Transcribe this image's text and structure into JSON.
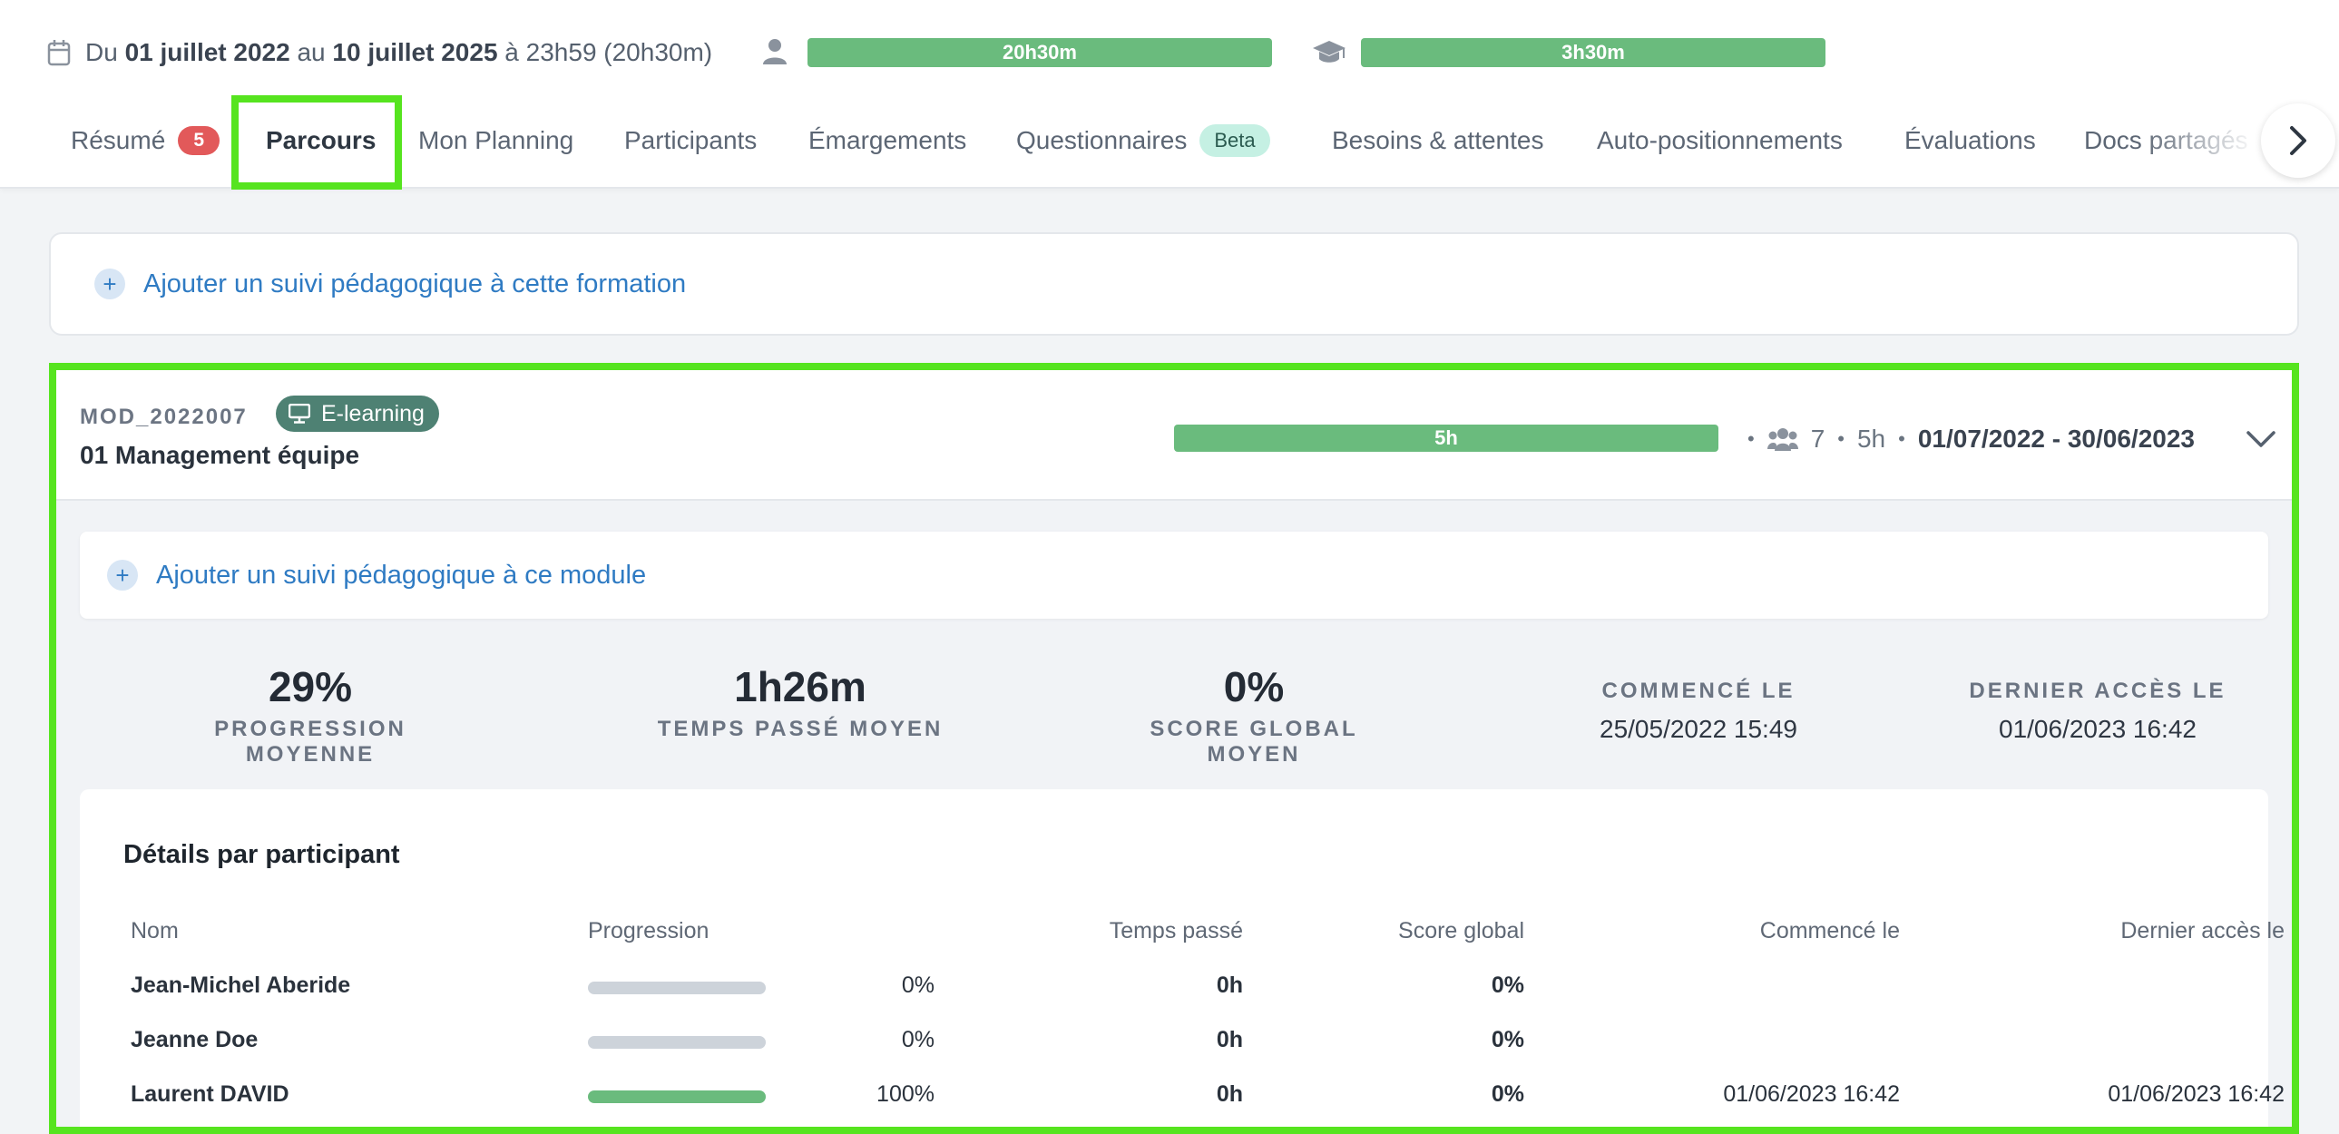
{
  "header": {
    "date_prefix": "Du",
    "date_start": "01 juillet 2022",
    "date_mid": "au",
    "date_end": "10 juillet 2025",
    "date_suffix": "à 23h59 (20h30m)",
    "bar1_label": "20h30m",
    "bar2_label": "3h30m"
  },
  "tabs": [
    {
      "label": "Résumé",
      "count": "5"
    },
    {
      "label": "Parcours",
      "active": true
    },
    {
      "label": "Mon Planning"
    },
    {
      "label": "Participants"
    },
    {
      "label": "Émargements"
    },
    {
      "label": "Questionnaires",
      "badge": "Beta"
    },
    {
      "label": "Besoins & attentes"
    },
    {
      "label": "Auto-positionnements"
    },
    {
      "label": "Évaluations"
    },
    {
      "label": "Docs partagés"
    }
  ],
  "add_formation_label": "Ajouter un suivi pédagogique à cette formation",
  "module": {
    "code": "MOD_2022007",
    "type_badge": "E-learning",
    "title": "01 Management équipe",
    "bar_label": "5h",
    "participants": "7",
    "duration": "5h",
    "dates": "01/07/2022 - 30/06/2023",
    "add_label": "Ajouter un suivi pédagogique à ce module",
    "stats": {
      "progression_value": "29%",
      "progression_label": "PROGRESSION MOYENNE",
      "time_value": "1h26m",
      "time_label": "TEMPS PASSÉ MOYEN",
      "score_value": "0%",
      "score_label": "SCORE GLOBAL MOYEN",
      "started_label": "COMMENCÉ LE",
      "started_value": "25/05/2022 15:49",
      "last_label": "DERNIER ACCÈS LE",
      "last_value": "01/06/2023 16:42"
    },
    "details": {
      "title": "Détails par participant",
      "columns": [
        "Nom",
        "Progression",
        "Temps passé",
        "Score global",
        "Commencé le",
        "Dernier accès le"
      ],
      "rows": [
        {
          "name": "Jean-Michel Aberide",
          "progress": "0%",
          "progress_fraction": 0,
          "time": "0h",
          "score": "0%",
          "started": "",
          "last": ""
        },
        {
          "name": "Jeanne Doe",
          "progress": "0%",
          "progress_fraction": 0,
          "time": "0h",
          "score": "0%",
          "started": "",
          "last": ""
        },
        {
          "name": "Laurent DAVID",
          "progress": "100%",
          "progress_fraction": 1,
          "time": "0h",
          "score": "0%",
          "started": "01/06/2023 16:42",
          "last": "01/06/2023 16:42"
        }
      ]
    }
  },
  "colors": {
    "accent_green": "#6abb7d",
    "highlight": "#56e41f",
    "link_blue": "#2f7bc3",
    "count_red": "#e2595a",
    "elearning_badge": "#4e8173"
  }
}
